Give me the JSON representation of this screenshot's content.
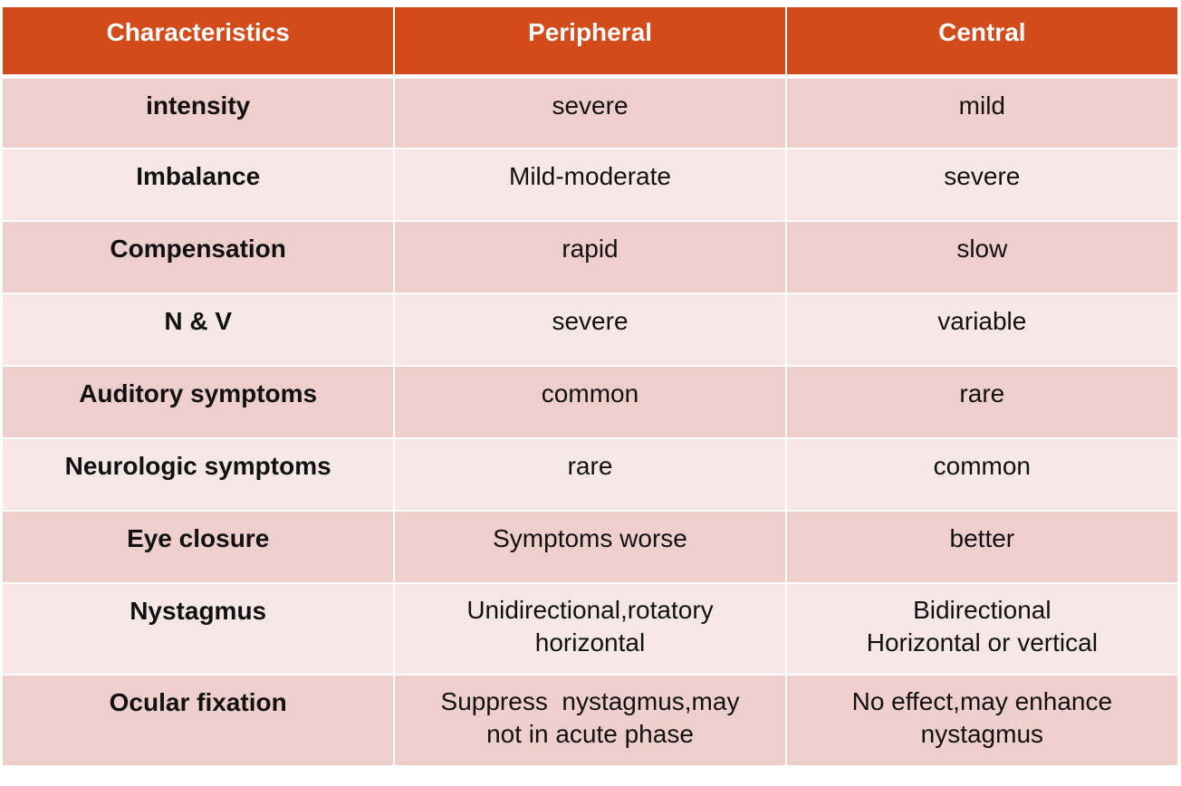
{
  "table": {
    "header": [
      "Characteristics",
      "Peripheral",
      "Central"
    ],
    "rows": [
      [
        "intensity",
        "severe",
        "mild"
      ],
      [
        "Imbalance",
        "Mild-moderate",
        "severe"
      ],
      [
        "Compensation",
        "rapid",
        "slow"
      ],
      [
        "N & V",
        "severe",
        "variable"
      ],
      [
        "Auditory symptoms",
        "common",
        "rare"
      ],
      [
        "Neurologic symptoms",
        "rare",
        "common"
      ],
      [
        "Eye closure",
        "Symptoms worse",
        "better"
      ],
      [
        "Nystagmus",
        [
          "Unidirectional,rotatory",
          "horizontal"
        ],
        [
          "Bidirectional",
          "Horizontal or vertical"
        ]
      ],
      [
        "Ocular fixation",
        [
          "Suppress  nystagmus,may",
          "not in acute phase"
        ],
        [
          "No effect,may enhance",
          "nystagmus"
        ]
      ]
    ]
  }
}
